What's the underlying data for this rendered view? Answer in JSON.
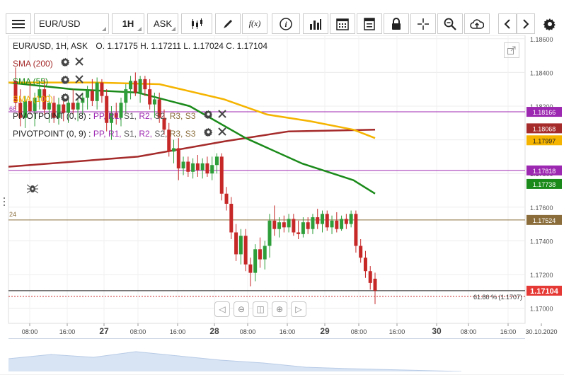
{
  "toolbar": {
    "symbol": "EUR/USD",
    "timeframe": "1H",
    "price_type": "ASK",
    "fx_label": "f(x)"
  },
  "info": {
    "symbol_line": "EUR/USD, 1H, ASK",
    "ohlc": "O. 1.17175 H. 1.17211 L. 1.17024 C. 1.17104"
  },
  "indicators": [
    {
      "label": "SMA (200)",
      "color": "#a52a2a"
    },
    {
      "label": "SMA (55)",
      "color": "#1a8a1a"
    },
    {
      "label": "SMA (100)",
      "color": "#f5b400"
    }
  ],
  "pivots": [
    {
      "label": "PIVOTPOINT (0, 8)"
    },
    {
      "label": "PIVOTPOINT (0, 9)"
    }
  ],
  "pivot_parts": [
    "PP,",
    "R1,",
    "S1,",
    "R2,",
    "S2,",
    "R3,",
    "S3"
  ],
  "pivot_colors": [
    "#9c27b0",
    "#9c27b0",
    "#555555",
    "#9c27b0",
    "#555555",
    "#8a6d3b",
    "#8a6d3b"
  ],
  "side_labels": {
    "pp": "66",
    "s": "24"
  },
  "fib_label": "61.80 % (1.1707)",
  "nav": {
    "left": "◁",
    "zoom_out": "⊖",
    "reset": "◫",
    "zoom_in": "⊕",
    "right": "▷"
  },
  "colors": {
    "bull": "#2e9e3a",
    "bear": "#c62828",
    "pivot_purple": "#9c27b0",
    "s_line": "#8a6d3b",
    "fib": "#c62828"
  },
  "chart_data": {
    "type": "candlestick",
    "symbol": "EUR/USD",
    "timeframe": "1H",
    "y_ticks": [
      "1.18600",
      "1.18400",
      "1.18200",
      "1.18000",
      "1.17800",
      "1.17600",
      "1.17400",
      "1.17200",
      "1.17000"
    ],
    "ylim": [
      1.1691,
      1.1862
    ],
    "x_ticks": [
      "08:00",
      "16:00",
      "27",
      "08:00",
      "16:00",
      "28",
      "08:00",
      "16:00",
      "29",
      "08:00",
      "16:00",
      "30",
      "08:00",
      "16:00",
      "30.10.2020"
    ],
    "price_tags": [
      {
        "value": "1.18166",
        "color": "#9c27b0"
      },
      {
        "value": "1.18068",
        "color": "#a52a2a"
      },
      {
        "value": "1.17997",
        "color": "#f5b400"
      },
      {
        "value": "1.17818",
        "color": "#9c27b0"
      },
      {
        "value": "1.17738",
        "color": "#1a8a1a"
      },
      {
        "value": "1.17524",
        "color": "#8a6d3b"
      },
      {
        "value": "1.17104",
        "color": "#e53935"
      }
    ],
    "horizontal_lines": [
      {
        "name": "pivot",
        "value": 1.18166
      },
      {
        "name": "pivot",
        "value": 1.17818
      },
      {
        "name": "support",
        "value": 1.17524
      },
      {
        "name": "fib 61.80%",
        "value": 1.1707
      },
      {
        "name": "last",
        "value": 1.17104
      }
    ],
    "candles": [
      [
        1.1835,
        1.1843,
        1.1818,
        1.1822
      ],
      [
        1.1822,
        1.183,
        1.1808,
        1.1813
      ],
      [
        1.1813,
        1.1826,
        1.1807,
        1.1823
      ],
      [
        1.1823,
        1.1834,
        1.1815,
        1.1817
      ],
      [
        1.1817,
        1.1828,
        1.1808,
        1.1825
      ],
      [
        1.1825,
        1.1835,
        1.1818,
        1.183
      ],
      [
        1.183,
        1.1836,
        1.1815,
        1.1818
      ],
      [
        1.1818,
        1.1827,
        1.181,
        1.1822
      ],
      [
        1.1822,
        1.1826,
        1.181,
        1.1813
      ],
      [
        1.1813,
        1.1825,
        1.1809,
        1.1821
      ],
      [
        1.1821,
        1.1826,
        1.1811,
        1.1816
      ],
      [
        1.1816,
        1.1826,
        1.181,
        1.1822
      ],
      [
        1.1822,
        1.183,
        1.1815,
        1.1818
      ],
      [
        1.1818,
        1.1825,
        1.1811,
        1.1822
      ],
      [
        1.1822,
        1.1828,
        1.1815,
        1.1825
      ],
      [
        1.1825,
        1.1832,
        1.1818,
        1.1829
      ],
      [
        1.1829,
        1.1836,
        1.182,
        1.1823
      ],
      [
        1.1823,
        1.1837,
        1.1818,
        1.1834
      ],
      [
        1.1834,
        1.1836,
        1.1822,
        1.1826
      ],
      [
        1.1826,
        1.183,
        1.1805,
        1.181
      ],
      [
        1.181,
        1.182,
        1.18,
        1.1816
      ],
      [
        1.1816,
        1.1822,
        1.1809,
        1.1813
      ],
      [
        1.1813,
        1.1825,
        1.1808,
        1.1822
      ],
      [
        1.1822,
        1.1833,
        1.1816,
        1.183
      ],
      [
        1.183,
        1.1838,
        1.1824,
        1.1835
      ],
      [
        1.1835,
        1.184,
        1.1826,
        1.1828
      ],
      [
        1.1828,
        1.1838,
        1.1822,
        1.1836
      ],
      [
        1.1836,
        1.1838,
        1.1826,
        1.183
      ],
      [
        1.183,
        1.1836,
        1.1818,
        1.1821
      ],
      [
        1.1821,
        1.1828,
        1.1813,
        1.1824
      ],
      [
        1.1824,
        1.1828,
        1.181,
        1.1813
      ],
      [
        1.1813,
        1.1818,
        1.1803,
        1.1806
      ],
      [
        1.1806,
        1.181,
        1.179,
        1.1793
      ],
      [
        1.1793,
        1.18,
        1.1786,
        1.1795
      ],
      [
        1.1795,
        1.1801,
        1.1776,
        1.1783
      ],
      [
        1.1783,
        1.179,
        1.1779,
        1.1787
      ],
      [
        1.1787,
        1.179,
        1.1778,
        1.1781
      ],
      [
        1.1781,
        1.1789,
        1.1777,
        1.1786
      ],
      [
        1.1786,
        1.1791,
        1.1778,
        1.1782
      ],
      [
        1.1782,
        1.1789,
        1.1777,
        1.1786
      ],
      [
        1.1786,
        1.179,
        1.1778,
        1.178
      ],
      [
        1.178,
        1.179,
        1.1776,
        1.1785
      ],
      [
        1.1785,
        1.1792,
        1.178,
        1.179
      ],
      [
        1.179,
        1.1792,
        1.1764,
        1.1768
      ],
      [
        1.1768,
        1.1772,
        1.1758,
        1.1762
      ],
      [
        1.1762,
        1.1766,
        1.1741,
        1.1745
      ],
      [
        1.1745,
        1.175,
        1.1728,
        1.1732
      ],
      [
        1.1732,
        1.1747,
        1.1726,
        1.1743
      ],
      [
        1.1743,
        1.1747,
        1.1722,
        1.1726
      ],
      [
        1.1726,
        1.173,
        1.1713,
        1.1721
      ],
      [
        1.1721,
        1.1738,
        1.1716,
        1.1735
      ],
      [
        1.1735,
        1.1742,
        1.1724,
        1.1729
      ],
      [
        1.1729,
        1.174,
        1.1723,
        1.1737
      ],
      [
        1.1737,
        1.1756,
        1.173,
        1.1752
      ],
      [
        1.1752,
        1.1761,
        1.1743,
        1.1747
      ],
      [
        1.1747,
        1.1754,
        1.1742,
        1.1751
      ],
      [
        1.1751,
        1.1755,
        1.1745,
        1.1748
      ],
      [
        1.1748,
        1.1756,
        1.1745,
        1.1753
      ],
      [
        1.1753,
        1.1756,
        1.1743,
        1.1745
      ],
      [
        1.1745,
        1.1752,
        1.1741,
        1.1744
      ],
      [
        1.1744,
        1.1754,
        1.1742,
        1.1751
      ],
      [
        1.1751,
        1.1754,
        1.1744,
        1.1747
      ],
      [
        1.1747,
        1.1756,
        1.1744,
        1.1754
      ],
      [
        1.1754,
        1.1759,
        1.1747,
        1.175
      ],
      [
        1.175,
        1.1758,
        1.1745,
        1.1756
      ],
      [
        1.1756,
        1.1758,
        1.1746,
        1.1748
      ],
      [
        1.1748,
        1.1755,
        1.1744,
        1.1752
      ],
      [
        1.1752,
        1.1757,
        1.1745,
        1.1747
      ],
      [
        1.1747,
        1.1755,
        1.1746,
        1.1753
      ],
      [
        1.1753,
        1.1756,
        1.1747,
        1.175
      ],
      [
        1.175,
        1.1758,
        1.1748,
        1.1756
      ],
      [
        1.1756,
        1.1758,
        1.1733,
        1.1737
      ],
      [
        1.1737,
        1.1741,
        1.1727,
        1.173
      ],
      [
        1.173,
        1.1734,
        1.1718,
        1.1722
      ],
      [
        1.1722,
        1.1725,
        1.1711,
        1.1715
      ],
      [
        1.17175,
        1.17211,
        1.17024,
        1.17104
      ]
    ],
    "series": [
      {
        "name": "SMA (200)",
        "color": "#a52a2a",
        "values": [
          [
            0,
            1.1784
          ],
          [
            0.3,
            1.179
          ],
          [
            0.5,
            1.1799
          ],
          [
            0.65,
            1.1805
          ],
          [
            0.85,
            1.1806
          ]
        ]
      },
      {
        "name": "SMA (55)",
        "color": "#1a8a1a",
        "values": [
          [
            0,
            1.1834
          ],
          [
            0.15,
            1.183
          ],
          [
            0.3,
            1.1828
          ],
          [
            0.42,
            1.182
          ],
          [
            0.55,
            1.1801
          ],
          [
            0.68,
            1.1786
          ],
          [
            0.8,
            1.1776
          ],
          [
            0.85,
            1.1768
          ]
        ]
      },
      {
        "name": "SMA (100)",
        "color": "#f5b400",
        "values": [
          [
            0,
            1.1834
          ],
          [
            0.2,
            1.1834
          ],
          [
            0.35,
            1.1833
          ],
          [
            0.5,
            1.1824
          ],
          [
            0.6,
            1.1815
          ],
          [
            0.7,
            1.1811
          ],
          [
            0.8,
            1.1806
          ],
          [
            0.85,
            1.1801
          ]
        ]
      }
    ]
  }
}
